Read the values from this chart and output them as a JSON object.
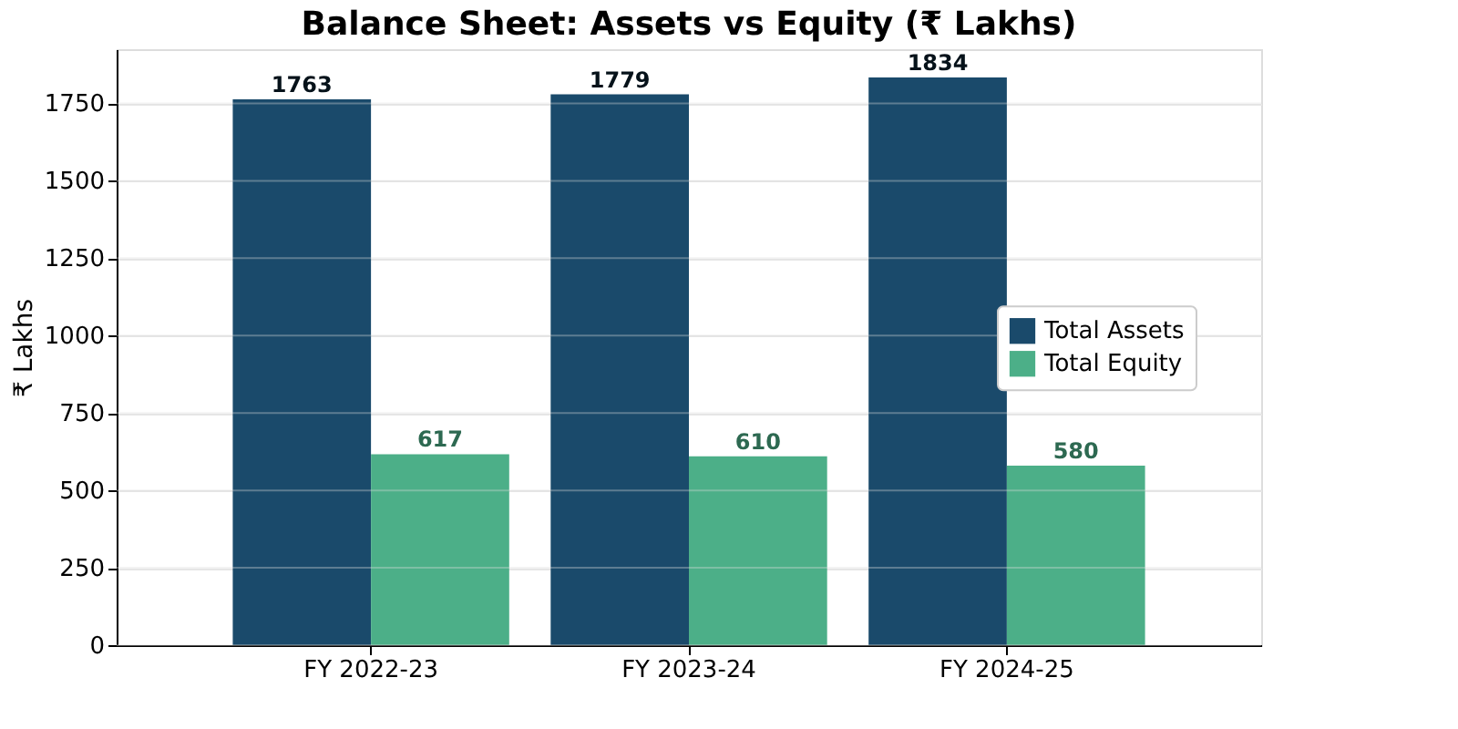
{
  "chart_data": {
    "type": "bar",
    "title": "Balance Sheet: Assets vs Equity (₹ Lakhs)",
    "ylabel": "₹ Lakhs",
    "categories": [
      "FY 2022-23",
      "FY 2023-24",
      "FY 2024-25"
    ],
    "series": [
      {
        "name": "Total Assets",
        "color": "#1a4a6b",
        "values": [
          1763,
          1779,
          1834
        ]
      },
      {
        "name": "Total Equity",
        "color": "#4caf88",
        "values": [
          617,
          610,
          580
        ]
      }
    ],
    "ylim": [
      0,
      1925
    ],
    "yticks": [
      0,
      250,
      500,
      750,
      1000,
      1250,
      1500,
      1750
    ],
    "grid": "y",
    "legend": "right",
    "data_labels": true
  }
}
